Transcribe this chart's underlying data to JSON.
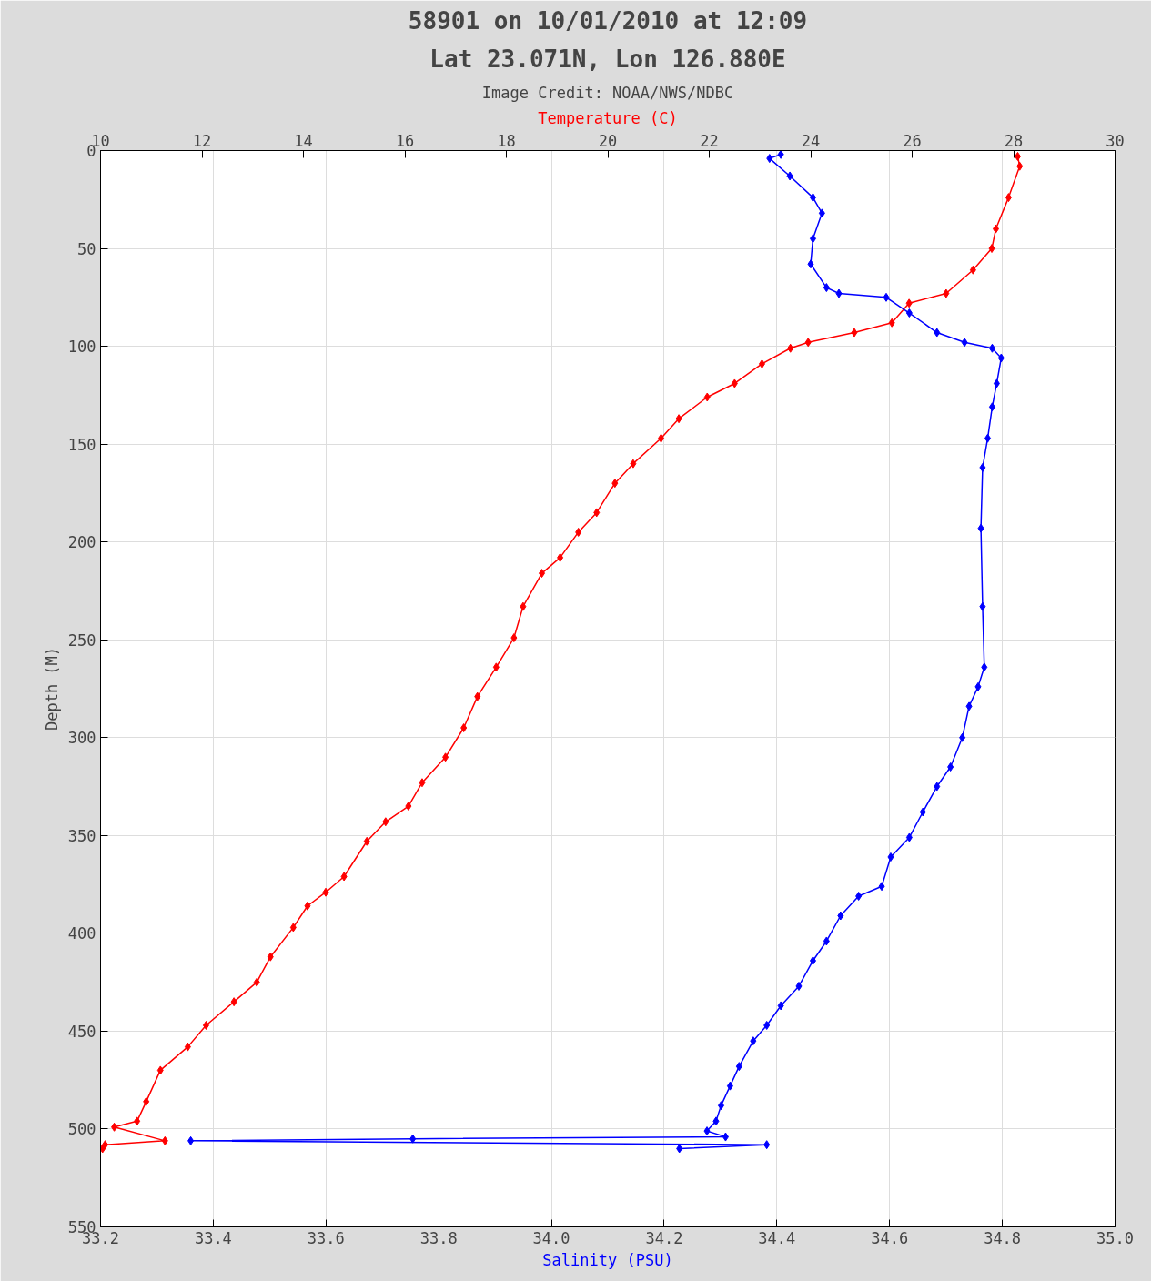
{
  "chart_data": {
    "type": "line",
    "title": "58901 on 10/01/2010 at 12:09",
    "subtitle": "Lat 23.071N, Lon 126.880E",
    "annotations": [
      "Image Credit: NOAA/NWS/NDBC"
    ],
    "xlabel": "Salinity (PSU)",
    "x2label": "Temperature (C)",
    "ylabel": "Depth (M)",
    "xlim": [
      33.2,
      35.0
    ],
    "xticks": [
      {
        "value": 33.2,
        "label": "33.2"
      },
      {
        "value": 33.4,
        "label": "33.4"
      },
      {
        "value": 33.6,
        "label": "33.6"
      },
      {
        "value": 33.8,
        "label": "33.8"
      },
      {
        "value": 34.0,
        "label": "34.0"
      },
      {
        "value": 34.2,
        "label": "34.2"
      },
      {
        "value": 34.4,
        "label": "34.4"
      },
      {
        "value": 34.6,
        "label": "34.6"
      },
      {
        "value": 34.8,
        "label": "34.8"
      },
      {
        "value": 35.0,
        "label": "35.0"
      }
    ],
    "x2lim": [
      10,
      30
    ],
    "x2ticks": [
      10,
      12,
      14,
      16,
      18,
      20,
      22,
      24,
      26,
      28,
      30
    ],
    "ylim": [
      550,
      0
    ],
    "yticks": [
      0,
      50,
      100,
      150,
      200,
      250,
      300,
      350,
      400,
      450,
      500,
      550
    ],
    "grid": true,
    "marker": "diamond",
    "line_style": "solid",
    "series": [
      {
        "color": "#ff0000",
        "axis": "x2",
        "x": [
          28.08,
          28.12,
          27.9,
          27.65,
          27.57,
          27.2,
          26.67,
          25.94,
          25.6,
          24.86,
          23.95,
          23.6,
          23.04,
          22.5,
          21.96,
          21.4,
          21.05,
          20.5,
          20.14,
          19.78,
          19.42,
          19.06,
          18.7,
          18.33,
          18.15,
          17.8,
          17.43,
          17.16,
          16.8,
          16.34,
          16.07,
          15.62,
          15.25,
          14.8,
          14.44,
          14.08,
          13.8,
          13.35,
          13.08,
          12.63,
          12.08,
          11.72,
          11.18,
          10.9,
          10.72,
          10.27,
          11.27,
          10.09,
          10.04
        ],
        "values": [
          3,
          8,
          24,
          40,
          50,
          61,
          73,
          78,
          88,
          93,
          98,
          101,
          109,
          119,
          126,
          137,
          147,
          160,
          170,
          185,
          195,
          208,
          216,
          233,
          249,
          264,
          279,
          295,
          310,
          323,
          335,
          343,
          353,
          371,
          379,
          386,
          397,
          412,
          425,
          435,
          447,
          458,
          470,
          486,
          496,
          499,
          506,
          508,
          510
        ]
      },
      {
        "color": "#0000ff",
        "x": [
          34.407,
          34.387,
          34.423,
          34.464,
          34.48,
          34.464,
          34.46,
          34.488,
          34.51,
          34.594,
          34.635,
          34.684,
          34.733,
          34.782,
          34.798,
          34.79,
          34.782,
          34.774,
          34.765,
          34.762,
          34.765,
          34.768,
          34.757,
          34.741,
          34.729,
          34.708,
          34.684,
          34.659,
          34.635,
          34.602,
          34.586,
          34.545,
          34.513,
          34.488,
          34.464,
          34.439,
          34.407,
          34.382,
          34.358,
          34.333,
          34.317,
          34.301,
          34.292,
          34.276,
          34.309,
          33.754,
          33.36,
          34.382,
          34.227
        ],
        "values": [
          2,
          4,
          13,
          24,
          32,
          45,
          58,
          70,
          73,
          75,
          83,
          93,
          98,
          101,
          106,
          119,
          131,
          147,
          162,
          193,
          233,
          264,
          274,
          284,
          300,
          315,
          325,
          338,
          351,
          361,
          376,
          381,
          391,
          404,
          414,
          427,
          437,
          447,
          455,
          468,
          478,
          488,
          496,
          501,
          504,
          505,
          506,
          508,
          510
        ]
      }
    ]
  }
}
